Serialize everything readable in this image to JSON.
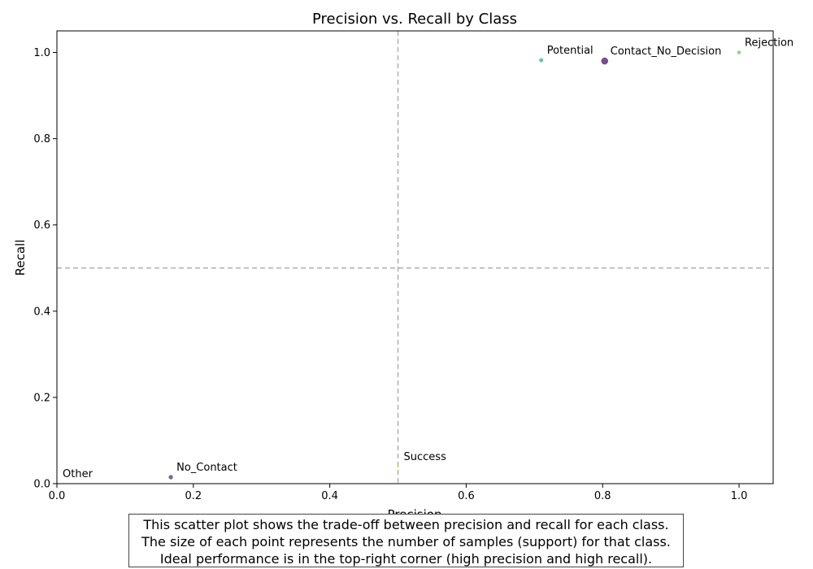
{
  "chart_data": {
    "type": "scatter",
    "title": "Precision vs. Recall by Class",
    "xlabel": "Precision",
    "ylabel": "Recall",
    "xlim": [
      0,
      1.05
    ],
    "ylim": [
      0,
      1.05
    ],
    "xticks": [
      "0.0",
      "0.2",
      "0.4",
      "0.6",
      "0.8",
      "1.0"
    ],
    "yticks": [
      "0.0",
      "0.2",
      "0.4",
      "0.6",
      "0.8",
      "1.0"
    ],
    "reference_lines": {
      "x": 0.5,
      "y": 0.5,
      "style": "dashed",
      "color": "#b0b0b0"
    },
    "grid": false,
    "point_size_encodes": "support",
    "points": [
      {
        "label": "Contact_No_Decision",
        "precision": 0.803,
        "recall": 0.98,
        "support_rank": 1,
        "color": "#6a2c7a"
      },
      {
        "label": "Potential",
        "precision": 0.71,
        "recall": 0.982,
        "support_rank": 3,
        "color": "#3bbf8e"
      },
      {
        "label": "Rejection",
        "precision": 1.0,
        "recall": 1.0,
        "support_rank": 4,
        "color": "#7ed05a"
      },
      {
        "label": "Success",
        "precision": 0.5,
        "recall": 0.04,
        "support_rank": 5,
        "color": "#e8d84a"
      },
      {
        "label": "No_Contact",
        "precision": 0.167,
        "recall": 0.015,
        "support_rank": 2,
        "color": "#5a4d98"
      },
      {
        "label": "Other",
        "precision": 0.0,
        "recall": 0.0,
        "support_rank": 6,
        "color": "#2e8a8a"
      }
    ]
  },
  "caption": {
    "lines": [
      "This scatter plot shows the trade-off between precision and recall for each class.",
      "The size of each point represents the number of samples (support) for that class.",
      "Ideal performance is in the top-right corner (high precision and high recall)."
    ]
  }
}
